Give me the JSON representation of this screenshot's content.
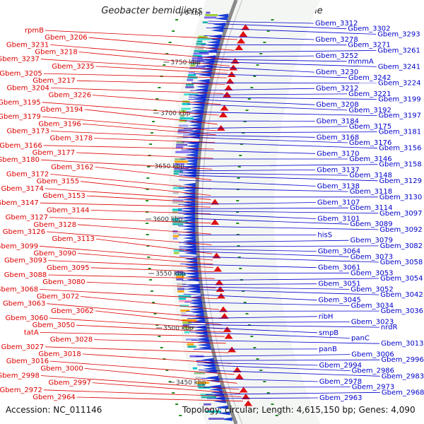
{
  "title": "Geobacter bemidjiensis Bem, complete genome",
  "footer": {
    "accession": "Accession: NC_011146",
    "summary": "Topology: circular; Length: 4,615,150 bp; Genes: 4,090"
  },
  "colors": {
    "left_label": "#dd0000",
    "right_label": "#0000cc",
    "forward_feature": "#e01010",
    "reverse_feature": "#1a3fd6",
    "backbone": "#8a8a8a",
    "tick_mark": "#228b22"
  },
  "ticks": [
    {
      "label": "0 kbp"
    },
    {
      "label": "3750 kbp"
    },
    {
      "label": "3700 kbp"
    },
    {
      "label": "3650 kbp"
    },
    {
      "label": "3600 kbp"
    },
    {
      "label": "3550 kbp"
    },
    {
      "label": "3500 kbp"
    },
    {
      "label": "3450 kbp"
    }
  ],
  "left_labels": [
    "rpmB",
    "Gbem_3206",
    "Gbem_3231",
    "Gbem_3218",
    "Gbem_3237",
    "Gbem_3235",
    "Gbem_3205",
    "Gbem_3217",
    "Gbem_3204",
    "Gbem_3226",
    "Gbem_3195",
    "Gbem_3194",
    "Gbem_3179",
    "Gbem_3196",
    "Gbem_3173",
    "Gbem_3178",
    "Gbem_3166",
    "Gbem_3177",
    "Gbem_3180",
    "Gbem_3162",
    "Gbem_3172",
    "Gbem_3155",
    "Gbem_3174",
    "Gbem_3153",
    "Gbem_3147",
    "Gbem_3144",
    "Gbem_3127",
    "Gbem_3128",
    "Gbem_3126",
    "Gbem_3113",
    "Gbem_3099",
    "Gbem_3090",
    "Gbem_3093",
    "Gbem_3095",
    "Gbem_3088",
    "Gbem_3080",
    "Gbem_3068",
    "Gbem_3072",
    "Gbem_3063",
    "Gbem_3062",
    "Gbem_3060",
    "Gbem_3050",
    "tatA",
    "Gbem_3028",
    "Gbem_3027",
    "Gbem_3018",
    "Gbem_3016",
    "Gbem_3000",
    "Gbem_2998",
    "Gbem_2997",
    "Gbem_2972",
    "Gbem_2964"
  ],
  "right_labels": [
    "Gbem_3312",
    "Gbem_3302",
    "Gbem_3293",
    "Gbem_3278",
    "Gbem_3271",
    "Gbem_3261",
    "Gbem_3252",
    "mmmA",
    "Gbem_3241",
    "Gbem_3230",
    "Gbem_3242",
    "Gbem_3224",
    "Gbem_3212",
    "Gbem_3221",
    "Gbem_3199",
    "Gbem_3208",
    "Gbem_3192",
    "Gbem_3197",
    "Gbem_3184",
    "Gbem_3175",
    "Gbem_3181",
    "Gbem_3168",
    "Gbem_3176",
    "Gbem_3156",
    "Gbem_3170",
    "Gbem_3146",
    "Gbem_3158",
    "Gbem_3137",
    "Gbem_3148",
    "Gbem_3129",
    "Gbem_3138",
    "Gbem_3118",
    "Gbem_3130",
    "Gbem_3107",
    "Gbem_3114",
    "Gbem_3097",
    "Gbem_3101",
    "Gbem_3089",
    "Gbem_3092",
    "hisS",
    "Gbem_3079",
    "Gbem_3082",
    "Gbem_3064",
    "Gbem_3073",
    "Gbem_3058",
    "Gbem_3061",
    "Gbem_3053",
    "Gbem_3054",
    "Gbem_3051",
    "Gbem_3052",
    "Gbem_3042",
    "Gbem_3045",
    "Gbem_3034",
    "Gbem_3036",
    "ribH",
    "Gbem_3023",
    "nrdR",
    "smpB",
    "panC",
    "Gbem_3013",
    "panB",
    "Gbem_3006",
    "Gbem_2996",
    "Gbem_2994",
    "Gbem_2986",
    "Gbem_2983",
    "Gbem_2978",
    "Gbem_2973",
    "Gbem_2968",
    "Gbem_2963"
  ]
}
